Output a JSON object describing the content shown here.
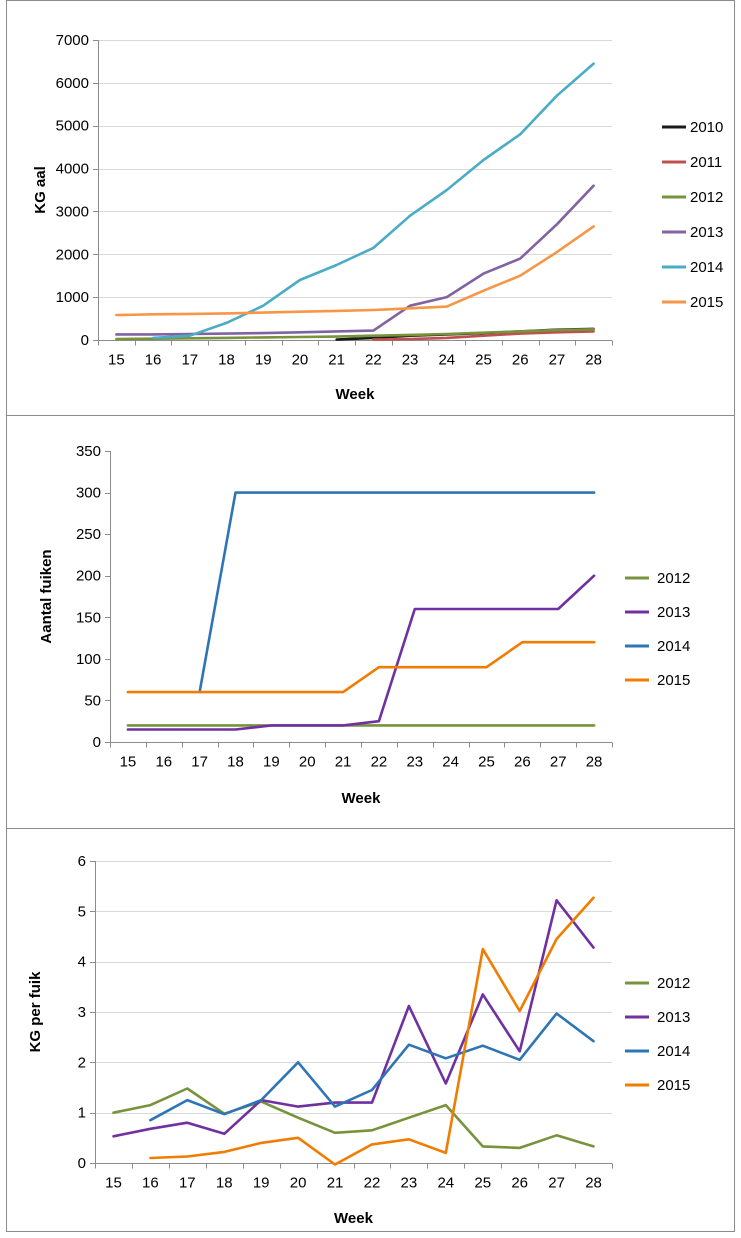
{
  "chart_data": [
    {
      "type": "line",
      "xlabel": "Week",
      "ylabel": "KG aal",
      "x": [
        15,
        16,
        17,
        18,
        19,
        20,
        21,
        22,
        23,
        24,
        25,
        26,
        27,
        28
      ],
      "ylim": [
        0,
        7000
      ],
      "yticks": [
        0,
        1000,
        2000,
        3000,
        4000,
        5000,
        6000,
        7000
      ],
      "grid": true,
      "legend": "right",
      "series": [
        {
          "name": "2010",
          "color": "#1a1a1a",
          "values": [
            null,
            null,
            null,
            null,
            null,
            null,
            10,
            50,
            100,
            130,
            160,
            200,
            240,
            260
          ]
        },
        {
          "name": "2011",
          "color": "#c0504d",
          "values": [
            null,
            null,
            null,
            null,
            null,
            null,
            null,
            10,
            20,
            50,
            100,
            150,
            180,
            200
          ]
        },
        {
          "name": "2012",
          "color": "#77933c",
          "values": [
            20,
            30,
            40,
            50,
            60,
            70,
            80,
            100,
            120,
            140,
            170,
            200,
            230,
            250
          ]
        },
        {
          "name": "2013",
          "color": "#8064a2",
          "values": [
            130,
            130,
            140,
            150,
            160,
            180,
            200,
            220,
            800,
            1000,
            1550,
            1900,
            2700,
            3600
          ]
        },
        {
          "name": "2014",
          "color": "#4bacc6",
          "values": [
            null,
            50,
            100,
            400,
            800,
            1400,
            1750,
            2150,
            2900,
            3500,
            4200,
            4800,
            5700,
            6450
          ]
        },
        {
          "name": "2015",
          "color": "#f79646",
          "values": [
            580,
            600,
            610,
            620,
            640,
            660,
            680,
            700,
            740,
            780,
            1150,
            1500,
            2050,
            2650
          ]
        }
      ]
    },
    {
      "type": "line",
      "xlabel": "Week",
      "ylabel": "Aantal fuiken",
      "x": [
        15,
        16,
        17,
        18,
        19,
        20,
        21,
        22,
        23,
        24,
        25,
        26,
        27,
        28
      ],
      "ylim": [
        0,
        350
      ],
      "yticks": [
        0,
        50,
        100,
        150,
        200,
        250,
        300,
        350
      ],
      "grid": false,
      "legend": "right",
      "series": [
        {
          "name": "2012",
          "color": "#77933c",
          "values": [
            20,
            20,
            20,
            20,
            20,
            20,
            20,
            20,
            20,
            20,
            20,
            20,
            20,
            20
          ]
        },
        {
          "name": "2013",
          "color": "#7030a0",
          "values": [
            15,
            15,
            15,
            15,
            20,
            20,
            20,
            25,
            160,
            160,
            160,
            160,
            160,
            200
          ]
        },
        {
          "name": "2014",
          "color": "#2e75b6",
          "values": [
            null,
            null,
            60,
            300,
            300,
            300,
            300,
            300,
            300,
            300,
            300,
            300,
            300,
            300
          ]
        },
        {
          "name": "2015",
          "color": "#f07c00",
          "values": [
            60,
            60,
            60,
            60,
            60,
            60,
            60,
            90,
            90,
            90,
            90,
            120,
            120,
            120
          ]
        }
      ]
    },
    {
      "type": "line",
      "xlabel": "Week",
      "ylabel": "KG per fuik",
      "x": [
        15,
        16,
        17,
        18,
        19,
        20,
        21,
        22,
        23,
        24,
        25,
        26,
        27,
        28
      ],
      "ylim": [
        0,
        6
      ],
      "yticks": [
        0,
        1,
        2,
        3,
        4,
        5,
        6
      ],
      "grid": true,
      "legend": "right",
      "series": [
        {
          "name": "2012",
          "color": "#77933c",
          "values": [
            1.0,
            1.15,
            1.48,
            0.98,
            1.22,
            0.9,
            0.6,
            0.65,
            0.9,
            1.15,
            0.33,
            0.3,
            0.55,
            0.33
          ]
        },
        {
          "name": "2013",
          "color": "#7030a0",
          "values": [
            0.53,
            0.68,
            0.8,
            0.58,
            1.25,
            1.12,
            1.2,
            1.2,
            3.12,
            1.58,
            3.35,
            2.22,
            5.22,
            4.28
          ]
        },
        {
          "name": "2014",
          "color": "#2e75b6",
          "values": [
            null,
            0.85,
            1.25,
            0.97,
            1.25,
            2.0,
            1.12,
            1.45,
            2.35,
            2.08,
            2.33,
            2.05,
            2.97,
            2.42
          ]
        },
        {
          "name": "2015",
          "color": "#f07c00",
          "values": [
            null,
            0.1,
            0.13,
            0.22,
            0.4,
            0.5,
            -0.03,
            0.37,
            0.47,
            0.2,
            4.25,
            3.02,
            4.45,
            5.27
          ]
        }
      ]
    }
  ]
}
